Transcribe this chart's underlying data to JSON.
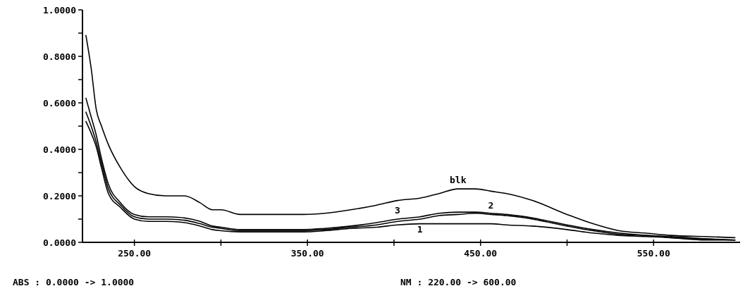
{
  "chart_data": {
    "type": "line",
    "x": [
      222,
      225,
      228,
      231,
      235,
      242,
      250,
      258,
      268,
      279,
      288,
      295,
      300,
      311,
      330,
      348,
      360,
      375,
      390,
      402,
      415,
      426,
      437,
      447,
      456,
      465,
      480,
      500,
      515,
      530,
      545,
      560,
      580,
      597
    ],
    "series": [
      {
        "name": "blk",
        "color": "#000000",
        "values": [
          0.89,
          0.75,
          0.57,
          0.5,
          0.42,
          0.32,
          0.24,
          0.21,
          0.2,
          0.2,
          0.17,
          0.14,
          0.14,
          0.12,
          0.12,
          0.12,
          0.125,
          0.14,
          0.16,
          0.18,
          0.19,
          0.21,
          0.23,
          0.23,
          0.22,
          0.21,
          0.18,
          0.12,
          0.08,
          0.05,
          0.04,
          0.03,
          0.025,
          0.02
        ]
      },
      {
        "name": "1",
        "color": "#000000",
        "values": [
          0.52,
          0.47,
          0.41,
          0.32,
          0.21,
          0.15,
          0.1,
          0.09,
          0.09,
          0.085,
          0.07,
          0.055,
          0.05,
          0.045,
          0.045,
          0.045,
          0.05,
          0.06,
          0.065,
          0.075,
          0.08,
          0.08,
          0.08,
          0.08,
          0.08,
          0.075,
          0.07,
          0.055,
          0.04,
          0.03,
          0.025,
          0.02,
          0.01,
          0.01
        ]
      },
      {
        "name": "2",
        "color": "#000000",
        "values": [
          0.56,
          0.5,
          0.43,
          0.34,
          0.23,
          0.16,
          0.11,
          0.1,
          0.1,
          0.095,
          0.08,
          0.065,
          0.06,
          0.05,
          0.05,
          0.05,
          0.055,
          0.065,
          0.075,
          0.09,
          0.1,
          0.115,
          0.12,
          0.125,
          0.12,
          0.115,
          0.1,
          0.07,
          0.05,
          0.035,
          0.03,
          0.02,
          0.015,
          0.01
        ]
      },
      {
        "name": "3",
        "color": "#000000",
        "values": [
          0.62,
          0.54,
          0.46,
          0.36,
          0.25,
          0.17,
          0.12,
          0.11,
          0.11,
          0.105,
          0.09,
          0.07,
          0.065,
          0.055,
          0.055,
          0.055,
          0.06,
          0.07,
          0.085,
          0.1,
          0.11,
          0.125,
          0.13,
          0.13,
          0.125,
          0.12,
          0.105,
          0.075,
          0.055,
          0.04,
          0.03,
          0.025,
          0.015,
          0.01
        ]
      }
    ],
    "xlim": [
      220,
      600
    ],
    "xticks": [
      {
        "value": 250,
        "label": "250.00"
      },
      {
        "value": 300,
        "label": null
      },
      {
        "value": 350,
        "label": "350.00"
      },
      {
        "value": 400,
        "label": null
      },
      {
        "value": 450,
        "label": "450.00"
      },
      {
        "value": 500,
        "label": null
      },
      {
        "value": 550,
        "label": "550.00"
      }
    ],
    "ylim": [
      0,
      1
    ],
    "yticks": [
      {
        "value": 0,
        "label": "0.0000"
      },
      {
        "value": 0.1,
        "label": null
      },
      {
        "value": 0.2,
        "label": "0.2000"
      },
      {
        "value": 0.3,
        "label": null
      },
      {
        "value": 0.4,
        "label": "0.4000"
      },
      {
        "value": 0.5,
        "label": null
      },
      {
        "value": 0.6,
        "label": "0.6000"
      },
      {
        "value": 0.7,
        "label": null
      },
      {
        "value": 0.8,
        "label": "0.8000"
      },
      {
        "value": 0.9,
        "label": null
      },
      {
        "value": 1,
        "label": "1.0000"
      }
    ],
    "grid": false,
    "marker": "none",
    "line_style": "solid",
    "annotations": [
      "ABS : 0.0000 -> 1.0000",
      "NM : 220.00 -> 600.00"
    ]
  }
}
